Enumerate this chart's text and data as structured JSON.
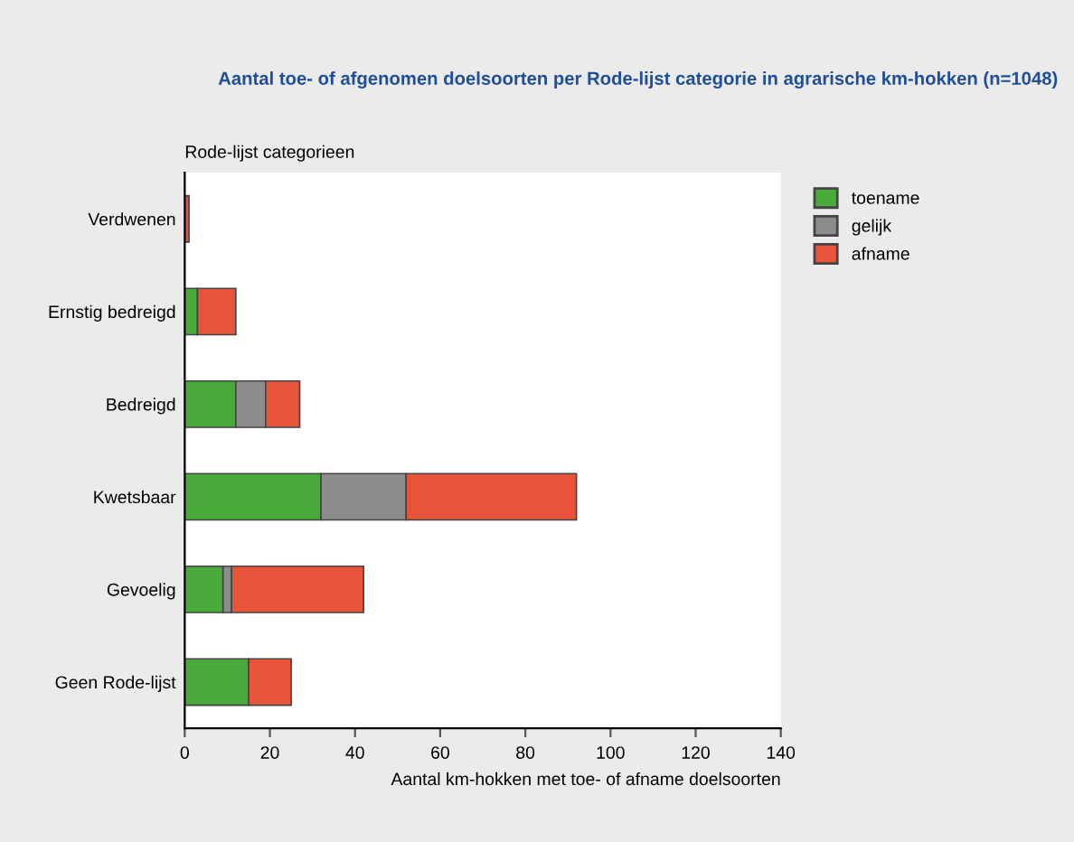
{
  "chart_data": {
    "type": "bar",
    "orientation": "horizontal",
    "stacked": true,
    "title": "Aantal toe- of afgenomen doelsoorten per Rode-lijst categorie in agrarische km-hokken (n=1048)",
    "ylabel": "Rode-lijst categorieen",
    "xlabel": "Aantal km-hokken met toe- of afname doelsoorten",
    "categories": [
      "Verdwenen",
      "Ernstig bedreigd",
      "Bedreigd",
      "Kwetsbaar",
      "Gevoelig",
      "Geen Rode-lijst"
    ],
    "series": [
      {
        "name": "toename",
        "color": "#4aab3c",
        "values": [
          0,
          3,
          12,
          32,
          9,
          15
        ]
      },
      {
        "name": "gelijk",
        "color": "#8c8c8c",
        "values": [
          0,
          0,
          7,
          20,
          2,
          0
        ]
      },
      {
        "name": "afname",
        "color": "#e8543a",
        "values": [
          1,
          9,
          8,
          40,
          31,
          10
        ]
      }
    ],
    "xlim": [
      0,
      140
    ],
    "xticks": [
      0,
      20,
      40,
      60,
      80,
      100,
      120,
      140
    ],
    "grid": false,
    "legend": "top right"
  }
}
